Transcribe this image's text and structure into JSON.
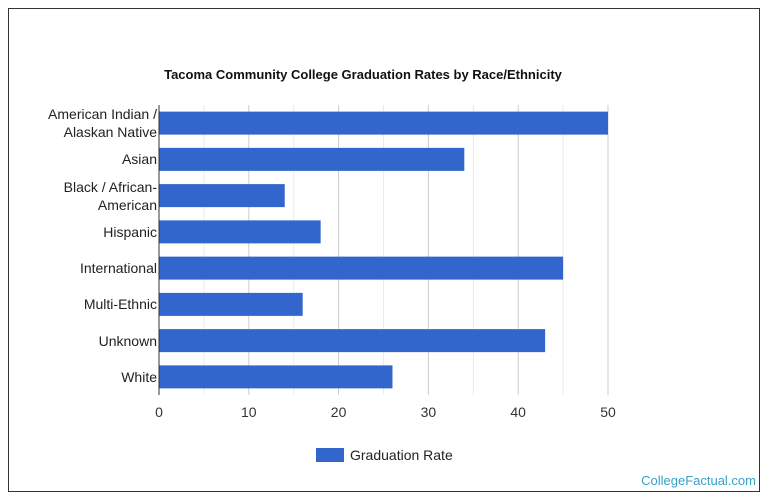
{
  "chart_data": {
    "type": "bar",
    "orientation": "horizontal",
    "title": "Tacoma Community College Graduation Rates by Race/Ethnicity",
    "categories": [
      [
        "American Indian /",
        "Alaskan Native"
      ],
      [
        "Asian"
      ],
      [
        "Black / African-",
        "American"
      ],
      [
        "Hispanic"
      ],
      [
        "International"
      ],
      [
        "Multi-Ethnic"
      ],
      [
        "Unknown"
      ],
      [
        "White"
      ]
    ],
    "series": [
      {
        "name": "Graduation Rate",
        "values": [
          50,
          34,
          14,
          18,
          45,
          16,
          43,
          26
        ]
      }
    ],
    "xlim": [
      0,
      50
    ],
    "xticks": [
      "0",
      "10",
      "20",
      "30",
      "40",
      "50"
    ],
    "grid": true,
    "legend_position": "bottom",
    "colors": {
      "bar": "#3366cc",
      "grid": "#cccccc",
      "axis": "#333333"
    }
  },
  "watermark": "CollegeFactual.com"
}
